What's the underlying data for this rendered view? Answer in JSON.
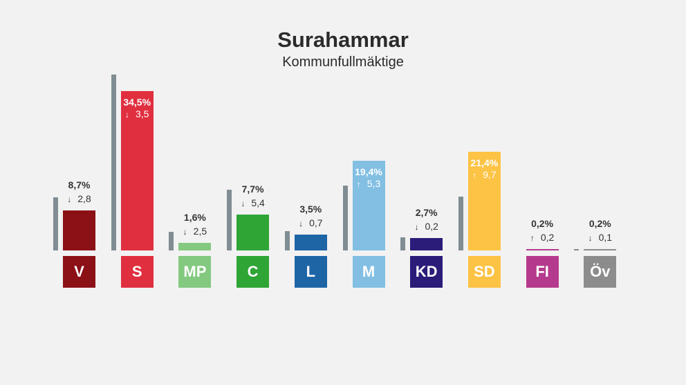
{
  "title": "Surahammar",
  "subtitle": "Kommunfullmäktige",
  "chart_data": {
    "type": "bar",
    "title": "Surahammar",
    "subtitle": "Kommunfullmäktige",
    "ylim": [
      0,
      40
    ],
    "categories": [
      "V",
      "S",
      "MP",
      "C",
      "L",
      "M",
      "KD",
      "SD",
      "FI",
      "Öv"
    ],
    "series": [
      {
        "values": [
          8.7,
          34.5,
          1.6,
          7.7,
          3.5,
          19.4,
          2.7,
          21.4,
          0.2,
          0.2
        ],
        "labels": [
          "8,7%",
          "34,5%",
          "1,6%",
          "7,7%",
          "3,5%",
          "19,4%",
          "2,7%",
          "21,4%",
          "0,2%",
          "0,2%"
        ]
      },
      {
        "values": [
          11.5,
          38.0,
          4.1,
          13.1,
          4.2,
          14.1,
          2.9,
          11.7,
          0.0,
          0.3
        ]
      }
    ],
    "changes": [
      {
        "dir": "down",
        "text": "2,8"
      },
      {
        "dir": "down",
        "text": "3,5"
      },
      {
        "dir": "down",
        "text": "2,5"
      },
      {
        "dir": "down",
        "text": "5,4"
      },
      {
        "dir": "down",
        "text": "0,7"
      },
      {
        "dir": "up",
        "text": "5,3"
      },
      {
        "dir": "down",
        "text": "0,2"
      },
      {
        "dir": "up",
        "text": "9,7"
      },
      {
        "dir": "up",
        "text": "0,2"
      },
      {
        "dir": "down",
        "text": "0,1"
      }
    ],
    "colors": [
      "#8b1116",
      "#e02f3f",
      "#83c97f",
      "#2fa536",
      "#1e65a6",
      "#82bfe3",
      "#2a1c78",
      "#fdc344",
      "#b53a8d",
      "#8c8c8c"
    ],
    "previous_color": "#808d93",
    "inside_label_series": [
      "S",
      "M",
      "SD"
    ]
  }
}
